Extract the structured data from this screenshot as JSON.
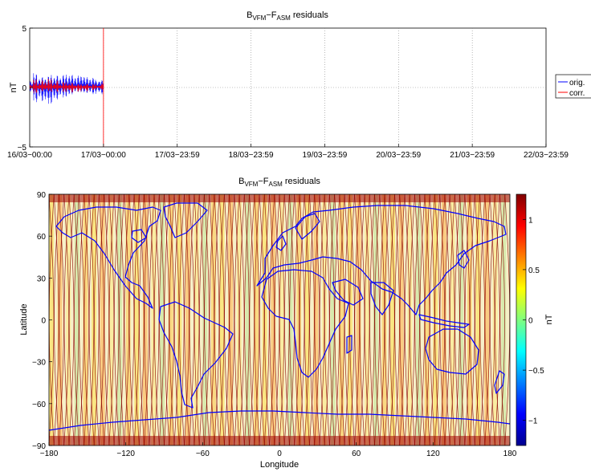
{
  "chart_data": [
    {
      "type": "line",
      "title_main": "B",
      "title_sub1": "VFM",
      "title_mid": "−F",
      "title_sub2": "ASM",
      "title_end": " residuals",
      "ylabel": "nT",
      "xlabel": "",
      "ylim": [
        -5,
        5
      ],
      "yticks": [
        "5",
        "0",
        "−5"
      ],
      "xticks": [
        "16/03−00:00",
        "17/03−00:00",
        "17/03−23:59",
        "18/03−23:59",
        "19/03−23:59",
        "20/03−23:59",
        "21/03−23:59",
        "22/03−23:59"
      ],
      "grid": true,
      "legend_position": "right",
      "series": [
        {
          "name": "orig.",
          "color": "#0000ff",
          "x_range_days": [
            0,
            1
          ],
          "values": [
            0.5,
            1.4,
            -0.9,
            1.3,
            -1.1,
            1.5,
            -1.0,
            1.2,
            -0.8,
            1.1,
            -0.9,
            1.0,
            -0.7,
            0.9,
            -0.8,
            0.8,
            -0.6,
            0.8,
            -0.5,
            0.7
          ]
        },
        {
          "name": "corr.",
          "color": "#ff0000",
          "x_range_days": [
            0,
            1
          ],
          "values": [
            0.2,
            0.7,
            -0.3,
            0.6,
            -0.4,
            0.7,
            -0.3,
            0.6,
            -0.2,
            0.5,
            -0.3,
            0.5,
            -0.2,
            0.4,
            -0.2,
            0.4,
            -0.1,
            0.3,
            -0.1,
            0.3
          ]
        }
      ]
    },
    {
      "type": "heatmap",
      "title_main": "B",
      "title_sub1": "VFM",
      "title_mid": "−F",
      "title_sub2": "ASM",
      "title_end": " residuals",
      "xlabel": "Longitude",
      "ylabel": "Latitude",
      "xlim": [
        -180,
        180
      ],
      "ylim": [
        -90,
        90
      ],
      "xticks": [
        "−180",
        "−120",
        "−60",
        "0",
        "60",
        "120",
        "180"
      ],
      "yticks": [
        "90",
        "60",
        "30",
        "0",
        "−30",
        "−60",
        "−90"
      ],
      "colorbar": {
        "label": "nT",
        "range": [
          -1.25,
          1.25
        ],
        "ticks": [
          "1",
          "0.5",
          "0",
          "−0.5",
          "−1"
        ],
        "colormap": "jet"
      },
      "overlay": "coastlines",
      "coastline_color": "#0000ff"
    }
  ]
}
